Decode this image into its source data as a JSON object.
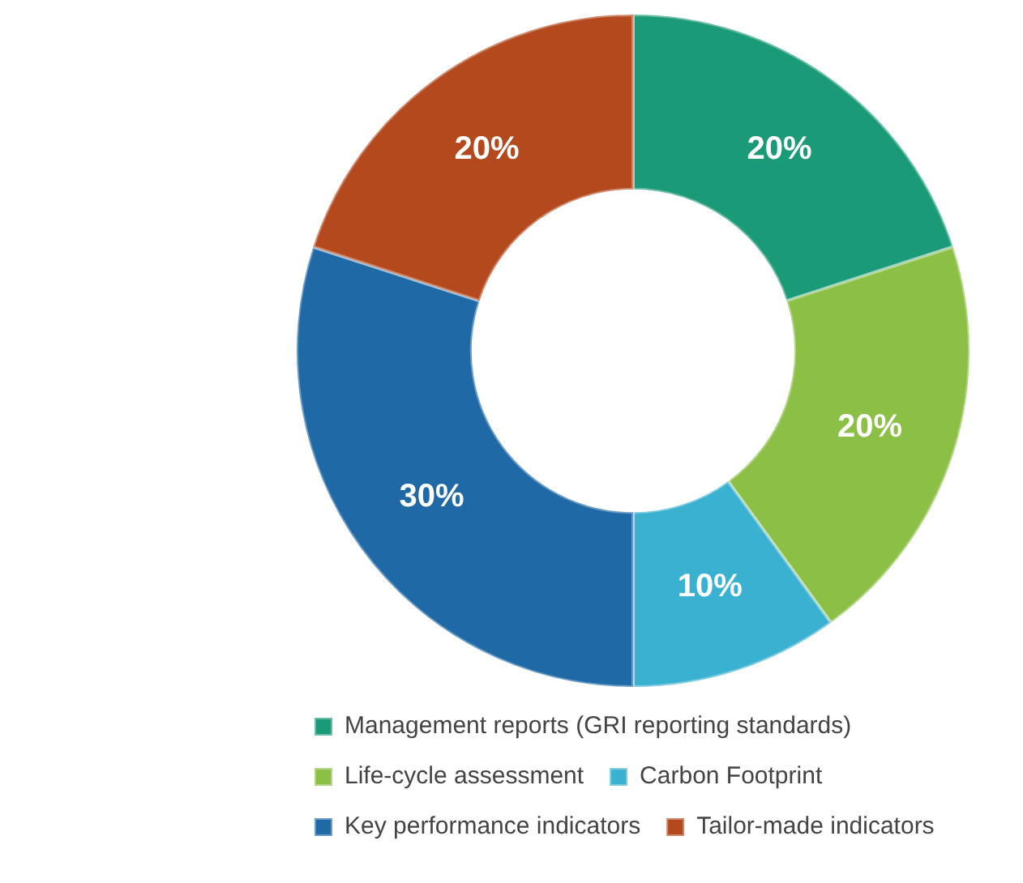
{
  "chart_data": {
    "type": "donut",
    "categories": [
      "Management reports (GRI reporting standards)",
      "Life-cycle assessment",
      "Carbon Footprint",
      "Key performance indicators",
      "Tailor-made indicators"
    ],
    "values": [
      20,
      20,
      10,
      30,
      20
    ],
    "colors": [
      "#1b9a78",
      "#8bbf45",
      "#3bb1d1",
      "#1f69a6",
      "#b4491d"
    ],
    "value_labels": [
      "20%",
      "20%",
      "10%",
      "30%",
      "20%"
    ],
    "legend": "bottom"
  }
}
